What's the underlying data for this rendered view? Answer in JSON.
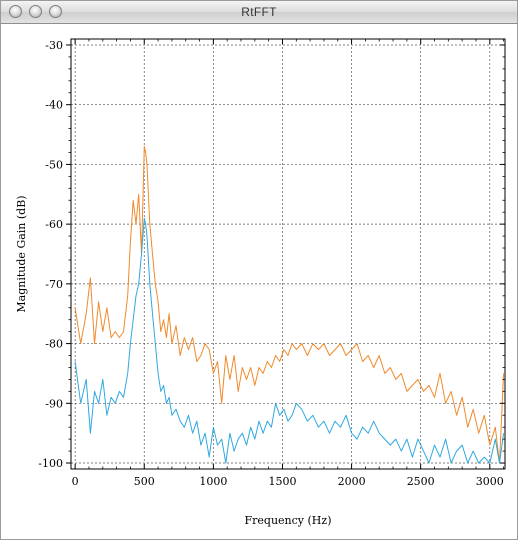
{
  "window": {
    "title": "RtFFT",
    "controls": [
      "close-button",
      "minimize-button",
      "zoom-button"
    ]
  },
  "chart_data": {
    "type": "line",
    "title": "",
    "xlabel": "Frequency (Hz)",
    "ylabel": "Magnitude Gain (dB)",
    "xlim": [
      -30,
      3110
    ],
    "ylim": [
      -101,
      -29
    ],
    "xticks": [
      0,
      500,
      1000,
      1500,
      2000,
      2500,
      3000
    ],
    "yticks": [
      -30,
      -40,
      -50,
      -60,
      -70,
      -80,
      -90,
      -100
    ],
    "grid": true,
    "legend": "none",
    "series": [
      {
        "color": "#f08a2c",
        "x": [
          0,
          40,
          80,
          110,
          140,
          170,
          200,
          230,
          260,
          290,
          320,
          350,
          380,
          400,
          420,
          440,
          460,
          480,
          500,
          510,
          520,
          540,
          560,
          580,
          600,
          620,
          640,
          660,
          680,
          700,
          730,
          760,
          790,
          820,
          850,
          880,
          910,
          940,
          970,
          1000,
          1030,
          1060,
          1090,
          1120,
          1150,
          1180,
          1210,
          1240,
          1270,
          1300,
          1330,
          1360,
          1390,
          1420,
          1450,
          1480,
          1510,
          1540,
          1570,
          1600,
          1640,
          1680,
          1720,
          1760,
          1800,
          1840,
          1880,
          1920,
          1960,
          2000,
          2040,
          2080,
          2120,
          2160,
          2200,
          2240,
          2280,
          2320,
          2360,
          2400,
          2440,
          2480,
          2520,
          2560,
          2600,
          2640,
          2680,
          2720,
          2760,
          2800,
          2840,
          2880,
          2920,
          2960,
          3000,
          3040,
          3070,
          3100
        ],
        "y": [
          -74,
          -80,
          -75,
          -69,
          -80,
          -73,
          -78,
          -74,
          -79,
          -78,
          -79,
          -78,
          -72,
          -63,
          -56,
          -60,
          -55,
          -65,
          -47,
          -48,
          -50,
          -60,
          -65,
          -70,
          -73,
          -78,
          -76,
          -79,
          -75,
          -80,
          -77,
          -82,
          -79,
          -81,
          -79,
          -83,
          -82,
          -80,
          -81,
          -85,
          -83,
          -90,
          -82,
          -86,
          -82,
          -88,
          -84,
          -86,
          -84,
          -87,
          -84,
          -85,
          -83,
          -84,
          -82,
          -83,
          -81,
          -82,
          -80,
          -81,
          -80,
          -82,
          -80,
          -81,
          -80,
          -82,
          -81,
          -80,
          -82,
          -81,
          -80,
          -83,
          -82,
          -84,
          -82,
          -85,
          -84,
          -86,
          -85,
          -88,
          -87,
          -86,
          -88,
          -87,
          -89,
          -85,
          -90,
          -88,
          -92,
          -89,
          -94,
          -91,
          -95,
          -92,
          -97,
          -94,
          -100,
          -85
        ]
      },
      {
        "color": "#2fa8e0",
        "x": [
          0,
          40,
          80,
          110,
          140,
          170,
          200,
          230,
          260,
          290,
          320,
          350,
          380,
          400,
          420,
          440,
          460,
          480,
          500,
          510,
          520,
          540,
          560,
          580,
          600,
          620,
          640,
          660,
          680,
          700,
          730,
          760,
          790,
          820,
          850,
          880,
          910,
          940,
          970,
          1000,
          1030,
          1060,
          1090,
          1120,
          1150,
          1180,
          1210,
          1240,
          1270,
          1300,
          1330,
          1360,
          1390,
          1420,
          1450,
          1480,
          1510,
          1540,
          1570,
          1600,
          1640,
          1680,
          1720,
          1760,
          1800,
          1840,
          1880,
          1920,
          1960,
          2000,
          2040,
          2080,
          2120,
          2160,
          2200,
          2240,
          2280,
          2320,
          2360,
          2400,
          2440,
          2480,
          2520,
          2560,
          2600,
          2640,
          2680,
          2720,
          2760,
          2800,
          2840,
          2880,
          2920,
          2960,
          3000,
          3040,
          3070,
          3100
        ],
        "y": [
          -83,
          -90,
          -86,
          -95,
          -88,
          -90,
          -86,
          -92,
          -89,
          -90,
          -88,
          -89,
          -85,
          -80,
          -76,
          -72,
          -70,
          -65,
          -59,
          -60,
          -62,
          -70,
          -75,
          -80,
          -85,
          -88,
          -87,
          -90,
          -89,
          -92,
          -91,
          -93,
          -94,
          -92,
          -95,
          -93,
          -97,
          -95,
          -99,
          -94,
          -97,
          -96,
          -100,
          -95,
          -98,
          -96,
          -95,
          -97,
          -94,
          -96,
          -93,
          -95,
          -93,
          -94,
          -90,
          -92,
          -91,
          -93,
          -92,
          -90,
          -91,
          -93,
          -92,
          -94,
          -93,
          -95,
          -93,
          -94,
          -92,
          -95,
          -96,
          -94,
          -95,
          -93,
          -95,
          -96,
          -97,
          -96,
          -98,
          -96,
          -99,
          -96,
          -98,
          -100,
          -97,
          -99,
          -96,
          -100,
          -98,
          -97,
          -100,
          -98,
          -100,
          -99,
          -100,
          -96,
          -100,
          -95
        ]
      }
    ]
  }
}
